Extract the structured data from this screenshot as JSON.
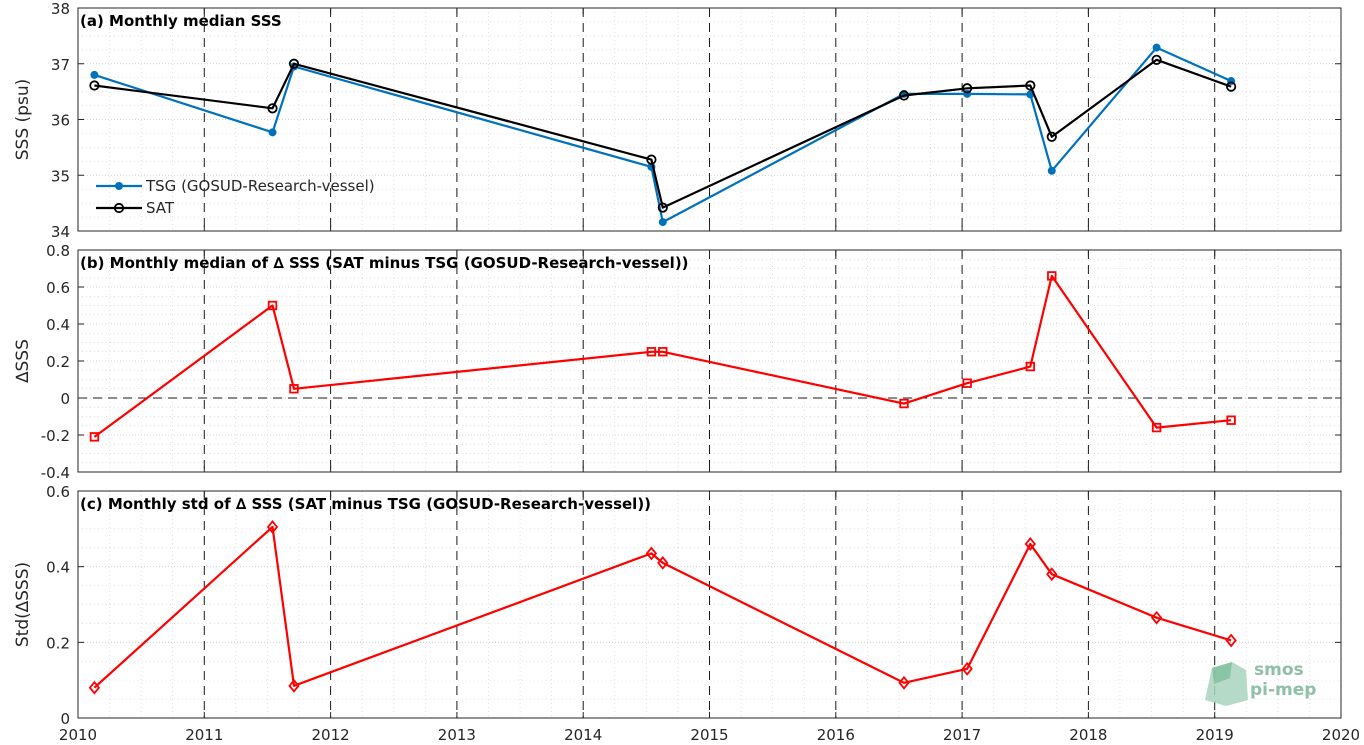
{
  "chart_data": [
    {
      "type": "line",
      "title": "(a) Monthly median SSS",
      "xlabel": "",
      "ylabel": "SSS (psu)",
      "xlim": [
        2010,
        2020
      ],
      "ylim": [
        34,
        38
      ],
      "xticks": [
        "2010",
        "2011",
        "2012",
        "2013",
        "2014",
        "2015",
        "2016",
        "2017",
        "2018",
        "2019",
        "2020"
      ],
      "yticks": [
        "34",
        "35",
        "36",
        "37",
        "38"
      ],
      "grid": true,
      "legend_position": "lower-left",
      "series": [
        {
          "name": "TSG (GOSUD-Research-vessel)",
          "color": "#0072bd",
          "marker": "dot",
          "x": [
            2010.13,
            2011.54,
            2011.71,
            2014.54,
            2014.63,
            2016.54,
            2017.04,
            2017.54,
            2017.71,
            2018.54,
            2019.13
          ],
          "y": [
            36.8,
            35.77,
            36.95,
            35.15,
            34.16,
            36.46,
            36.46,
            36.45,
            35.08,
            37.29,
            36.69
          ]
        },
        {
          "name": "SAT",
          "color": "#000000",
          "marker": "circle",
          "x": [
            2010.13,
            2011.54,
            2011.71,
            2014.54,
            2014.63,
            2016.54,
            2017.04,
            2017.54,
            2017.71,
            2018.54,
            2019.13
          ],
          "y": [
            36.61,
            36.2,
            37.0,
            35.28,
            34.42,
            36.43,
            36.56,
            36.61,
            35.69,
            37.07,
            36.59
          ]
        }
      ]
    },
    {
      "type": "line",
      "title": "(b) Monthly median of ∆ SSS (SAT minus TSG (GOSUD-Research-vessel))",
      "xlabel": "",
      "ylabel": "∆SSS",
      "xlim": [
        2010,
        2020
      ],
      "ylim": [
        -0.4,
        0.8
      ],
      "xticks": [
        "2010",
        "2011",
        "2012",
        "2013",
        "2014",
        "2015",
        "2016",
        "2017",
        "2018",
        "2019",
        "2020"
      ],
      "yticks": [
        "-0.4",
        "-0.2",
        "0",
        "0.2",
        "0.4",
        "0.6",
        "0.8"
      ],
      "zero_line": true,
      "grid": true,
      "series": [
        {
          "color": "#ff0000",
          "marker": "square",
          "x": [
            2010.13,
            2011.54,
            2011.71,
            2014.54,
            2014.63,
            2016.54,
            2017.04,
            2017.54,
            2017.71,
            2018.54,
            2019.13
          ],
          "y": [
            -0.21,
            0.5,
            0.05,
            0.25,
            0.25,
            -0.03,
            0.08,
            0.17,
            0.66,
            -0.16,
            -0.12
          ]
        }
      ]
    },
    {
      "type": "line",
      "title": "(c) Monthly std of ∆ SSS (SAT minus TSG (GOSUD-Research-vessel))",
      "xlabel": "",
      "ylabel": "Std(∆SSS)",
      "xlim": [
        2010,
        2020
      ],
      "ylim": [
        0,
        0.6
      ],
      "xticks": [
        "2010",
        "2011",
        "2012",
        "2013",
        "2014",
        "2015",
        "2016",
        "2017",
        "2018",
        "2019",
        "2020"
      ],
      "yticks": [
        "0",
        "0.2",
        "0.4",
        "0.6"
      ],
      "grid": true,
      "series": [
        {
          "color": "#ff0000",
          "marker": "diamond",
          "x": [
            2010.13,
            2011.54,
            2011.71,
            2014.54,
            2014.63,
            2016.54,
            2017.04,
            2017.54,
            2017.71,
            2018.54,
            2019.13
          ],
          "y": [
            0.08,
            0.505,
            0.085,
            0.435,
            0.41,
            0.093,
            0.13,
            0.46,
            0.38,
            0.265,
            0.205
          ]
        }
      ]
    }
  ],
  "logo": {
    "line1": "smos",
    "line2": "pi-mep"
  }
}
